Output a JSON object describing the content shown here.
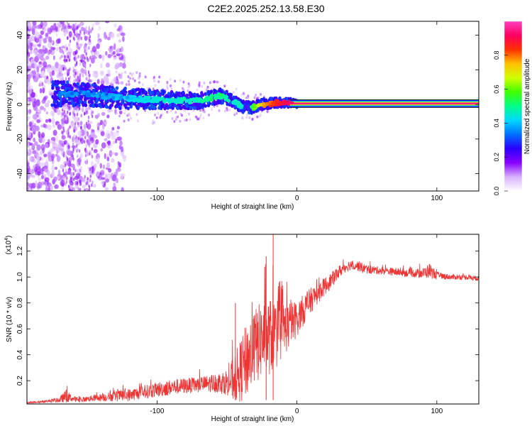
{
  "title": "C2E2.2025.252.13.58.E30",
  "chart_data": [
    {
      "type": "heatmap",
      "name": "spectrogram",
      "xlabel": "Height of straight line (km)",
      "ylabel": "Frequency (Hz)",
      "xlim": [
        -193,
        130
      ],
      "ylim": [
        -50,
        48
      ],
      "xticks": [
        -100,
        0,
        100
      ],
      "xtick_labels": [
        "-100",
        "0",
        "100"
      ],
      "yticks": [
        -40,
        -20,
        0,
        20,
        40
      ],
      "ytick_labels": [
        "-40",
        "-20",
        "0",
        "20",
        "40"
      ],
      "colorbar": {
        "label": "Normalized spectral amplitude",
        "range": [
          0,
          1
        ],
        "ticks": [
          0.0,
          0.2,
          0.4,
          0.6,
          0.8
        ],
        "tick_labels": [
          "0.0",
          "0.2",
          "0.4",
          "0.6",
          "0.8"
        ],
        "colormap": [
          "#ffffff",
          "#d8b0ff",
          "#8800ff",
          "#2a00ff",
          "#0070ff",
          "#00d8ff",
          "#00ff88",
          "#40ff00",
          "#d0ff00",
          "#ffc000",
          "#ff3000",
          "#ff0060",
          "#ff40c0"
        ]
      },
      "ridge": {
        "x": [
          -170,
          -150,
          -130,
          -110,
          -90,
          -70,
          -55,
          -48,
          -40,
          -33,
          -25,
          -15,
          -5,
          0,
          130
        ],
        "freq": [
          6,
          6,
          4,
          3,
          2.5,
          2,
          5,
          3,
          -1,
          -2,
          0,
          1,
          1,
          0.5,
          0.5
        ],
        "amplitude": [
          0.35,
          0.35,
          0.38,
          0.42,
          0.45,
          0.48,
          0.5,
          0.48,
          0.45,
          0.5,
          0.75,
          0.85,
          0.92,
          0.95,
          0.95
        ]
      }
    },
    {
      "type": "line",
      "name": "snr",
      "xlabel": "Height of straight line (km)",
      "ylabel": "SNR (10 * v/v)",
      "yscale_label": "(x10^4)",
      "scale_base": "(x10",
      "scale_exp": "4",
      "xlim": [
        -193,
        130
      ],
      "ylim": [
        0.02,
        1.33
      ],
      "xticks": [
        -100,
        0,
        100
      ],
      "xtick_labels": [
        "-100",
        "0",
        "100"
      ],
      "yticks": [
        0.2,
        0.4,
        0.6,
        0.8,
        1.0,
        1.2
      ],
      "ytick_labels": [
        "0.2",
        "0.4",
        "0.6",
        "0.8",
        "1.0",
        "1.2"
      ],
      "color": "#ee3333",
      "series": [
        {
          "name": "SNR",
          "x": [
            -193,
            -180,
            -170,
            -165,
            -160,
            -155,
            -150,
            -140,
            -130,
            -120,
            -110,
            -100,
            -90,
            -80,
            -70,
            -60,
            -50,
            -45,
            -40,
            -35,
            -30,
            -25,
            -20,
            -15,
            -10,
            -5,
            0,
            5,
            10,
            15,
            20,
            25,
            30,
            35,
            40,
            45,
            50,
            60,
            70,
            80,
            90,
            95,
            100,
            110,
            120,
            130
          ],
          "y": [
            0.03,
            0.04,
            0.05,
            0.08,
            0.06,
            0.05,
            0.06,
            0.07,
            0.08,
            0.09,
            0.11,
            0.13,
            0.15,
            0.16,
            0.17,
            0.18,
            0.19,
            0.21,
            0.28,
            0.38,
            0.46,
            0.52,
            0.54,
            0.56,
            0.6,
            0.63,
            0.68,
            0.75,
            0.82,
            0.88,
            0.93,
            0.98,
            1.04,
            1.08,
            1.1,
            1.08,
            1.06,
            1.05,
            1.04,
            1.03,
            1.03,
            1.05,
            1.01,
            1.0,
            1.0,
            0.99
          ],
          "noise": [
            0.005,
            0.01,
            0.02,
            0.05,
            0.02,
            0.02,
            0.02,
            0.03,
            0.04,
            0.05,
            0.05,
            0.06,
            0.06,
            0.06,
            0.06,
            0.07,
            0.1,
            0.18,
            0.25,
            0.3,
            0.3,
            0.3,
            0.3,
            0.28,
            0.22,
            0.18,
            0.14,
            0.12,
            0.1,
            0.08,
            0.07,
            0.06,
            0.05,
            0.04,
            0.04,
            0.04,
            0.035,
            0.03,
            0.03,
            0.03,
            0.04,
            0.06,
            0.03,
            0.02,
            0.02,
            0.02
          ]
        }
      ],
      "spikes": [
        {
          "x": -17,
          "y": 1.33
        },
        {
          "x": -22,
          "y": 1.16
        },
        {
          "x": -44,
          "y": 0.8
        },
        {
          "x": -165,
          "y": 0.13
        }
      ]
    }
  ]
}
